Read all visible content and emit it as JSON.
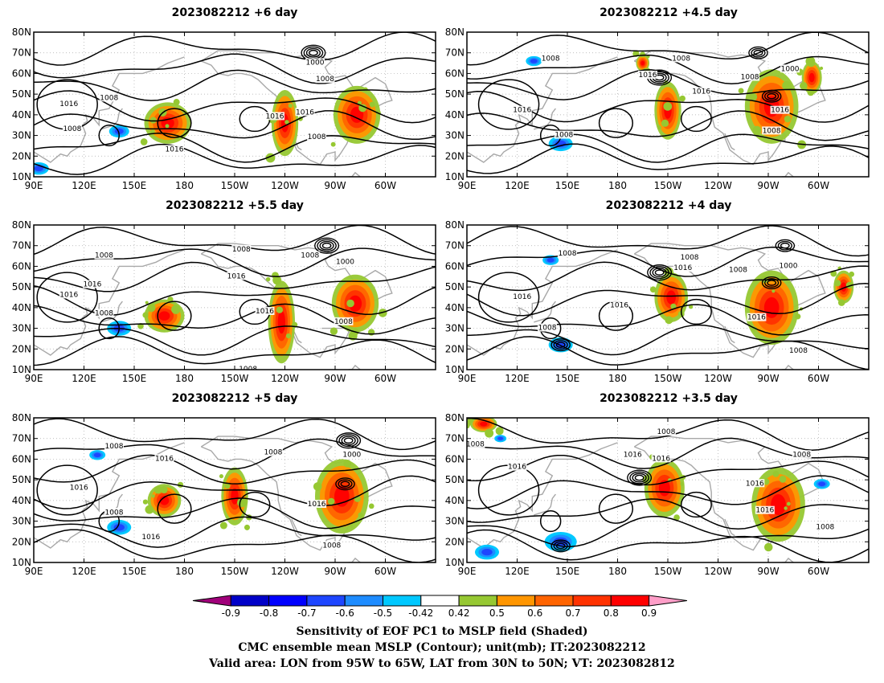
{
  "panels": [
    {
      "id": "p1",
      "title": "2023082212 +6 day",
      "lows": [
        {
          "lon": 257,
          "lat": 70,
          "n": 4
        }
      ],
      "neg": [
        {
          "lon": 141,
          "lat": 32,
          "r": 5
        },
        {
          "lon": 93,
          "lat": 14,
          "r": 5
        }
      ],
      "pos": [
        {
          "lon": 170,
          "lat": 36,
          "w": 14,
          "h": 10
        },
        {
          "lon": 240,
          "lat": 36,
          "w": 8,
          "h": 16
        },
        {
          "lon": 283,
          "lat": 40,
          "w": 14,
          "h": 14
        }
      ],
      "labels": [
        {
          "text": "1008",
          "lon": 135,
          "lat": 48
        },
        {
          "text": "1016",
          "lon": 111,
          "lat": 45
        },
        {
          "text": "1008",
          "lon": 113,
          "lat": 33
        },
        {
          "text": "1016",
          "lon": 174,
          "lat": 23
        },
        {
          "text": "1016",
          "lon": 234,
          "lat": 39
        },
        {
          "text": "1016",
          "lon": 252,
          "lat": 41
        },
        {
          "text": "1008",
          "lon": 259,
          "lat": 29
        },
        {
          "text": "1008",
          "lon": 264,
          "lat": 57
        },
        {
          "text": "1000",
          "lon": 258,
          "lat": 65
        }
      ]
    },
    {
      "id": "p2",
      "title": "2023082212 +4.5 day",
      "lows": [
        {
          "lon": 264,
          "lat": 70,
          "n": 3
        },
        {
          "lon": 205,
          "lat": 58,
          "n": 4
        },
        {
          "lon": 272,
          "lat": 49,
          "n": 3
        }
      ],
      "neg": [
        {
          "lon": 146,
          "lat": 26,
          "r": 6
        },
        {
          "lon": 130,
          "lat": 66,
          "r": 4
        }
      ],
      "pos": [
        {
          "lon": 210,
          "lat": 42,
          "w": 8,
          "h": 14
        },
        {
          "lon": 272,
          "lat": 44,
          "w": 16,
          "h": 18
        },
        {
          "lon": 296,
          "lat": 58,
          "w": 6,
          "h": 8
        },
        {
          "lon": 195,
          "lat": 65,
          "w": 4,
          "h": 4
        }
      ],
      "labels": [
        {
          "text": "1008",
          "lon": 140,
          "lat": 67
        },
        {
          "text": "1016",
          "lon": 123,
          "lat": 42
        },
        {
          "text": "1008",
          "lon": 148,
          "lat": 30
        },
        {
          "text": "1016",
          "lon": 198,
          "lat": 59
        },
        {
          "text": "1008",
          "lon": 218,
          "lat": 67
        },
        {
          "text": "1016",
          "lon": 230,
          "lat": 51
        },
        {
          "text": "1008",
          "lon": 259,
          "lat": 58
        },
        {
          "text": "1016",
          "lon": 277,
          "lat": 42
        },
        {
          "text": "1008",
          "lon": 272,
          "lat": 32
        },
        {
          "text": "1000",
          "lon": 283,
          "lat": 62
        }
      ]
    },
    {
      "id": "p3",
      "title": "2023082212 +5.5 day",
      "lows": [
        {
          "lon": 265,
          "lat": 70,
          "n": 4
        }
      ],
      "neg": [
        {
          "lon": 141,
          "lat": 30,
          "r": 6
        }
      ],
      "pos": [
        {
          "lon": 168,
          "lat": 36,
          "w": 12,
          "h": 8
        },
        {
          "lon": 238,
          "lat": 33,
          "w": 8,
          "h": 20
        },
        {
          "lon": 282,
          "lat": 42,
          "w": 14,
          "h": 14
        }
      ],
      "labels": [
        {
          "text": "1008",
          "lon": 214,
          "lat": 68
        },
        {
          "text": "1008",
          "lon": 132,
          "lat": 65
        },
        {
          "text": "1008",
          "lon": 255,
          "lat": 65
        },
        {
          "text": "1016",
          "lon": 125,
          "lat": 51
        },
        {
          "text": "1016",
          "lon": 211,
          "lat": 55
        },
        {
          "text": "1016",
          "lon": 111,
          "lat": 46
        },
        {
          "text": "1008",
          "lon": 132,
          "lat": 37
        },
        {
          "text": "1016",
          "lon": 228,
          "lat": 38
        },
        {
          "text": "1008",
          "lon": 275,
          "lat": 33
        },
        {
          "text": "1000",
          "lon": 276,
          "lat": 62
        },
        {
          "text": "1008",
          "lon": 218,
          "lat": 10
        }
      ]
    },
    {
      "id": "p4",
      "title": "2023082212 +4 day",
      "lows": [
        {
          "lon": 280,
          "lat": 70,
          "n": 3
        },
        {
          "lon": 205,
          "lat": 57,
          "n": 4
        },
        {
          "lon": 272,
          "lat": 52,
          "n": 3
        },
        {
          "lon": 146,
          "lat": 22,
          "n": 3
        }
      ],
      "neg": [
        {
          "lon": 146,
          "lat": 22,
          "r": 6
        },
        {
          "lon": 140,
          "lat": 63,
          "r": 4
        }
      ],
      "pos": [
        {
          "lon": 212,
          "lat": 45,
          "w": 10,
          "h": 12
        },
        {
          "lon": 272,
          "lat": 40,
          "w": 16,
          "h": 18
        },
        {
          "lon": 315,
          "lat": 50,
          "w": 6,
          "h": 8
        }
      ],
      "labels": [
        {
          "text": "1008",
          "lon": 150,
          "lat": 66
        },
        {
          "text": "1008",
          "lon": 223,
          "lat": 64
        },
        {
          "text": "1016",
          "lon": 219,
          "lat": 59
        },
        {
          "text": "1008",
          "lon": 252,
          "lat": 58
        },
        {
          "text": "1000",
          "lon": 282,
          "lat": 60
        },
        {
          "text": "1016",
          "lon": 123,
          "lat": 45
        },
        {
          "text": "1016",
          "lon": 181,
          "lat": 41
        },
        {
          "text": "1008",
          "lon": 138,
          "lat": 30
        },
        {
          "text": "1016",
          "lon": 263,
          "lat": 35
        },
        {
          "text": "1008",
          "lon": 288,
          "lat": 19
        }
      ]
    },
    {
      "id": "p5",
      "title": "2023082212 +5 day",
      "lows": [
        {
          "lon": 278,
          "lat": 69,
          "n": 4
        },
        {
          "lon": 276,
          "lat": 48,
          "n": 3
        }
      ],
      "neg": [
        {
          "lon": 141,
          "lat": 27,
          "r": 6
        },
        {
          "lon": 128,
          "lat": 62,
          "r": 4
        }
      ],
      "pos": [
        {
          "lon": 168,
          "lat": 40,
          "w": 10,
          "h": 8
        },
        {
          "lon": 210,
          "lat": 42,
          "w": 8,
          "h": 14
        },
        {
          "lon": 274,
          "lat": 42,
          "w": 16,
          "h": 18
        }
      ],
      "labels": [
        {
          "text": "1008",
          "lon": 138,
          "lat": 66
        },
        {
          "text": "1016",
          "lon": 168,
          "lat": 60
        },
        {
          "text": "1008",
          "lon": 233,
          "lat": 63
        },
        {
          "text": "1016",
          "lon": 117,
          "lat": 46
        },
        {
          "text": "1008",
          "lon": 138,
          "lat": 34
        },
        {
          "text": "1016",
          "lon": 160,
          "lat": 22
        },
        {
          "text": "1016",
          "lon": 259,
          "lat": 38
        },
        {
          "text": "1008",
          "lon": 268,
          "lat": 18
        },
        {
          "text": "1000",
          "lon": 280,
          "lat": 62
        }
      ]
    },
    {
      "id": "p6",
      "title": "2023082212 +3.5 day",
      "lows": [
        {
          "lon": 193,
          "lat": 51,
          "n": 4
        },
        {
          "lon": 146,
          "lat": 18,
          "n": 3
        }
      ],
      "neg": [
        {
          "lon": 146,
          "lat": 20,
          "r": 8
        },
        {
          "lon": 102,
          "lat": 15,
          "r": 6
        },
        {
          "lon": 302,
          "lat": 48,
          "r": 4
        },
        {
          "lon": 110,
          "lat": 70,
          "r": 3
        }
      ],
      "pos": [
        {
          "lon": 208,
          "lat": 46,
          "w": 12,
          "h": 14
        },
        {
          "lon": 276,
          "lat": 38,
          "w": 16,
          "h": 18
        },
        {
          "lon": 100,
          "lat": 77,
          "w": 8,
          "h": 4
        }
      ],
      "labels": [
        {
          "text": "1008",
          "lon": 95,
          "lat": 67
        },
        {
          "text": "1016",
          "lon": 120,
          "lat": 56
        },
        {
          "text": "1016",
          "lon": 189,
          "lat": 62
        },
        {
          "text": "1016",
          "lon": 206,
          "lat": 60
        },
        {
          "text": "1008",
          "lon": 209,
          "lat": 73
        },
        {
          "text": "1008",
          "lon": 290,
          "lat": 62
        },
        {
          "text": "1016",
          "lon": 262,
          "lat": 48
        },
        {
          "text": "1016",
          "lon": 268,
          "lat": 35
        },
        {
          "text": "1008",
          "lon": 304,
          "lat": 27
        }
      ]
    }
  ],
  "axes": {
    "x_ticks": [
      "90E",
      "120E",
      "150E",
      "180",
      "150W",
      "120W",
      "90W",
      "60W"
    ],
    "y_ticks": [
      "10N",
      "20N",
      "30N",
      "40N",
      "50N",
      "60N",
      "70N",
      "80N"
    ]
  },
  "colorbar": {
    "ticks": [
      "-0.9",
      "-0.8",
      "-0.7",
      "-0.6",
      "-0.5",
      "-0.42",
      "0.42",
      "0.5",
      "0.6",
      "0.7",
      "0.8",
      "0.9"
    ],
    "colors": [
      "#a0007a",
      "#0000c8",
      "#0000ff",
      "#1e46ff",
      "#1e8cff",
      "#00c8ff",
      "#ffffff",
      "#96c832",
      "#ff9600",
      "#ff6400",
      "#ff3200",
      "#ff0000",
      "#ff9ec8"
    ]
  },
  "caption": {
    "line1": "Sensitivity of EOF PC1 to MSLP field (Shaded)",
    "line2": "CMC ensemble mean MSLP (Contour); unit(mb); IT:2023082212",
    "line3": "Valid area: LON from 95W to 65W, LAT from 30N to 50N; VT: 2023082812"
  }
}
